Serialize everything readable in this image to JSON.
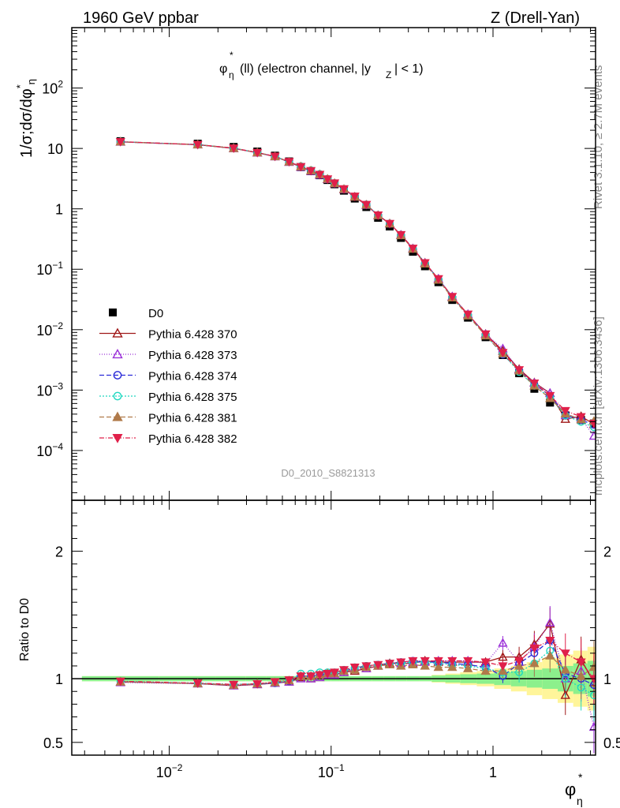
{
  "header": {
    "left_title": "1960 GeV ppbar",
    "right_title": "Z (Drell-Yan)"
  },
  "plot_title": {
    "main": "φ",
    "sup": "*",
    "sub": "η",
    "rest1": "(ll) (electron channel, |y",
    "rest_sub": "Z",
    "rest2": "| < 1)"
  },
  "y_label_top": {
    "main": "1/σ;dσ/dφ",
    "sup": "*",
    "sub": "η"
  },
  "y_label_bottom": "Ratio to D0",
  "x_label": {
    "main": "φ",
    "sup": "*",
    "sub": "η"
  },
  "watermark": "D0_2010_S8821313",
  "side_text_1": "Rivet 3.1.10, ≥ 2.7M events",
  "side_text_2": "mcplots.cern.ch [arXiv:1306.3436]",
  "upper_y_ticks": [
    {
      "value": 0.0001,
      "base": "10",
      "exp": "−4"
    },
    {
      "value": 0.001,
      "base": "10",
      "exp": "−3"
    },
    {
      "value": 0.01,
      "base": "10",
      "exp": "−2"
    },
    {
      "value": 0.1,
      "base": "10",
      "exp": "−1"
    },
    {
      "value": 1,
      "base": "1",
      "exp": ""
    },
    {
      "value": 10,
      "base": "10",
      "exp": ""
    },
    {
      "value": 100,
      "base": "10",
      "exp": "2"
    }
  ],
  "lower_y_ticks": [
    {
      "value": 0.5,
      "label": "0.5"
    },
    {
      "value": 1,
      "label": "1"
    },
    {
      "value": 2,
      "label": "2"
    }
  ],
  "x_ticks": [
    {
      "value": 0.01,
      "base": "10",
      "exp": "−2"
    },
    {
      "value": 0.1,
      "base": "10",
      "exp": "−1"
    },
    {
      "value": 1,
      "base": "1",
      "exp": ""
    }
  ],
  "chart_data": {
    "type": "line",
    "x_scale": "log",
    "y_scale_upper": "log",
    "xlim": [
      0.0025,
      4.3
    ],
    "ylim_upper": [
      1.5e-05,
      1000
    ],
    "ylim_lower": [
      0.4,
      2.4
    ],
    "legend_position": "left-middle",
    "x": [
      0.005,
      0.015,
      0.025,
      0.035,
      0.045,
      0.055,
      0.065,
      0.075,
      0.085,
      0.095,
      0.105,
      0.12,
      0.14,
      0.165,
      0.195,
      0.23,
      0.27,
      0.32,
      0.38,
      0.46,
      0.56,
      0.7,
      0.9,
      1.15,
      1.45,
      1.8,
      2.25,
      2.8,
      3.5,
      4.2
    ],
    "data": {
      "name": "D0",
      "values": [
        13.2,
        12.0,
        10.6,
        8.9,
        7.6,
        6.1,
        4.9,
        4.2,
        3.6,
        3.0,
        2.55,
        2.0,
        1.48,
        1.07,
        0.71,
        0.51,
        0.33,
        0.195,
        0.112,
        0.061,
        0.031,
        0.0158,
        0.0075,
        0.0038,
        0.0019,
        0.00105,
        0.00062,
        0.00038,
        0.00032,
        0.00028
      ]
    },
    "band_inner": [
      0.02,
      0.02,
      0.02,
      0.02,
      0.02,
      0.02,
      0.02,
      0.02,
      0.02,
      0.02,
      0.02,
      0.02,
      0.02,
      0.02,
      0.02,
      0.02,
      0.02,
      0.02,
      0.02,
      0.025,
      0.03,
      0.035,
      0.04,
      0.05,
      0.06,
      0.07,
      0.08,
      0.1,
      0.12,
      0.14
    ],
    "band_outer": [
      0.02,
      0.02,
      0.02,
      0.02,
      0.02,
      0.02,
      0.02,
      0.02,
      0.02,
      0.02,
      0.02,
      0.02,
      0.02,
      0.02,
      0.02,
      0.02,
      0.02,
      0.02,
      0.02,
      0.03,
      0.04,
      0.05,
      0.06,
      0.08,
      0.1,
      0.13,
      0.16,
      0.19,
      0.22,
      0.25
    ],
    "series": [
      {
        "name": "Pythia 6.428 370",
        "color": "#a01818",
        "dash": "",
        "marker": "triangle-up-open",
        "ratio": [
          0.975,
          0.962,
          0.945,
          0.955,
          0.965,
          0.975,
          1.01,
          1.0,
          1.01,
          1.03,
          1.03,
          1.05,
          1.06,
          1.08,
          1.1,
          1.12,
          1.12,
          1.12,
          1.14,
          1.13,
          1.13,
          1.13,
          1.13,
          1.17,
          1.17,
          1.27,
          1.43,
          0.87,
          1.15,
          0.97
        ]
      },
      {
        "name": "Pythia 6.428 373",
        "color": "#9b30d8",
        "dash": "1,2",
        "marker": "triangle-up-open",
        "ratio": [
          0.97,
          0.96,
          0.945,
          0.955,
          0.965,
          0.975,
          1.0,
          1.0,
          1.01,
          1.03,
          1.03,
          1.05,
          1.07,
          1.08,
          1.1,
          1.11,
          1.12,
          1.13,
          1.13,
          1.14,
          1.14,
          1.14,
          1.12,
          1.28,
          1.13,
          1.25,
          1.44,
          1.0,
          1.06,
          0.62
        ]
      },
      {
        "name": "Pythia 6.428 374",
        "color": "#2a2ad8",
        "dash": "6,3",
        "marker": "circle-open",
        "ratio": [
          0.975,
          0.962,
          0.95,
          0.958,
          0.965,
          0.98,
          1.02,
          1.02,
          1.03,
          1.04,
          1.04,
          1.06,
          1.08,
          1.1,
          1.11,
          1.12,
          1.13,
          1.14,
          1.13,
          1.13,
          1.12,
          1.11,
          1.09,
          1.02,
          1.12,
          1.2,
          1.3,
          1.04,
          1.0,
          0.95
        ]
      },
      {
        "name": "Pythia 6.428 375",
        "color": "#20d8c0",
        "dash": "2,2",
        "marker": "circle-open",
        "ratio": [
          0.98,
          0.965,
          0.955,
          0.96,
          0.97,
          0.985,
          1.04,
          1.04,
          1.05,
          1.05,
          1.05,
          1.07,
          1.09,
          1.1,
          1.11,
          1.12,
          1.12,
          1.13,
          1.13,
          1.12,
          1.11,
          1.1,
          1.08,
          1.05,
          1.05,
          1.12,
          1.22,
          1.0,
          0.93,
          0.87
        ]
      },
      {
        "name": "Pythia 6.428 381",
        "color": "#b07a4a",
        "dash": "6,3",
        "marker": "triangle-up-filled",
        "ratio": [
          0.975,
          0.962,
          0.95,
          0.96,
          0.97,
          0.985,
          1.02,
          1.02,
          1.03,
          1.04,
          1.04,
          1.06,
          1.07,
          1.09,
          1.1,
          1.11,
          1.1,
          1.11,
          1.1,
          1.09,
          1.09,
          1.08,
          1.06,
          1.06,
          1.1,
          1.12,
          1.18,
          1.07,
          1.02,
          1.09
        ]
      },
      {
        "name": "Pythia 6.428 382",
        "color": "#e0204a",
        "dash": "6,2,1,2",
        "marker": "triangle-down-filled",
        "ratio": [
          0.98,
          0.965,
          0.955,
          0.96,
          0.975,
          0.99,
          1.02,
          1.02,
          1.03,
          1.04,
          1.05,
          1.07,
          1.09,
          1.1,
          1.11,
          1.12,
          1.13,
          1.14,
          1.14,
          1.14,
          1.14,
          1.14,
          1.13,
          1.1,
          1.14,
          1.24,
          1.3,
          1.2,
          1.13,
          1.0
        ]
      }
    ]
  }
}
